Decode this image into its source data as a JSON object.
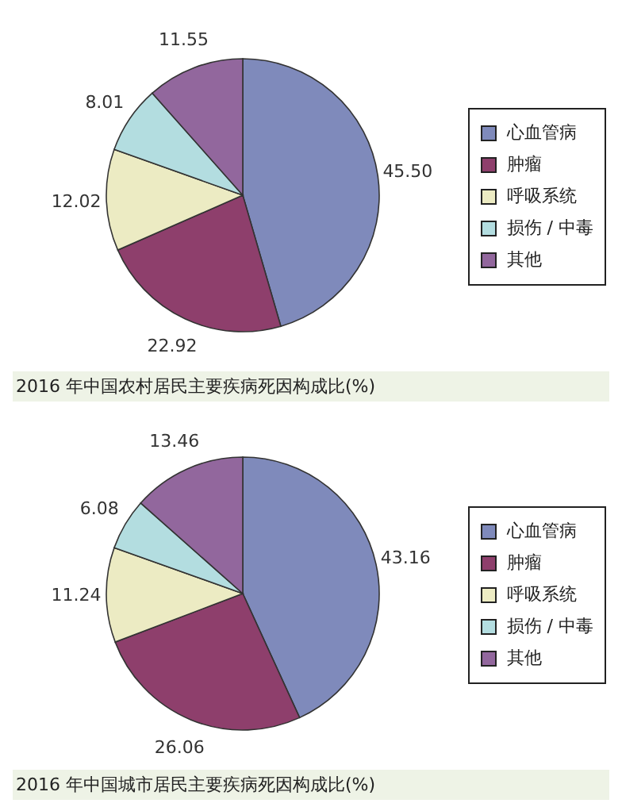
{
  "chart_data": [
    {
      "type": "pie",
      "title": "2016 年中国农村居民主要疾病死因构成比(%)",
      "categories": [
        "心血管病",
        "肿瘤",
        "呼吸系统",
        "损伤 / 中毒",
        "其他"
      ],
      "values": [
        45.5,
        22.92,
        12.02,
        8.01,
        11.55
      ],
      "value_labels": [
        "45.50",
        "22.92",
        "12.02",
        "8.01",
        "11.55"
      ],
      "colors": [
        "#7f8abb",
        "#8e3f6c",
        "#ecebc3",
        "#b3dde0",
        "#92679d"
      ],
      "legend": "right"
    },
    {
      "type": "pie",
      "title": "2016 年中国城市居民主要疾病死因构成比(%)",
      "categories": [
        "心血管病",
        "肿瘤",
        "呼吸系统",
        "损伤 / 中毒",
        "其他"
      ],
      "values": [
        43.16,
        26.06,
        11.24,
        6.08,
        13.46
      ],
      "value_labels": [
        "43.16",
        "26.06",
        "11.24",
        "6.08",
        "13.46"
      ],
      "colors": [
        "#7f8abb",
        "#8e3f6c",
        "#ecebc3",
        "#b3dde0",
        "#92679d"
      ],
      "legend": "right"
    }
  ]
}
